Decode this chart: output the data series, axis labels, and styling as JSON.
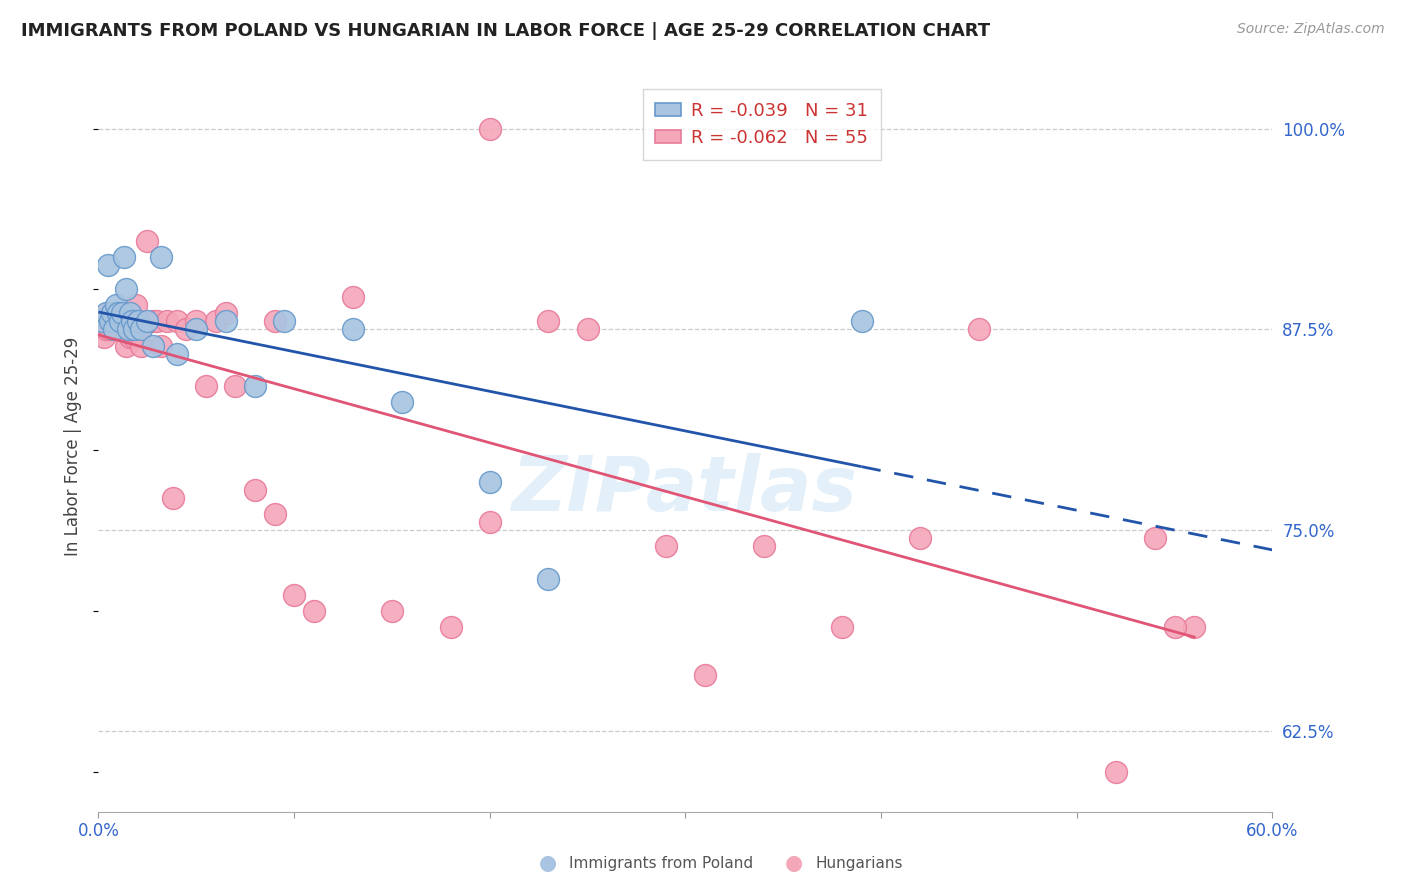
{
  "title": "IMMIGRANTS FROM POLAND VS HUNGARIAN IN LABOR FORCE | AGE 25-29 CORRELATION CHART",
  "source": "Source: ZipAtlas.com",
  "ylabel": "In Labor Force | Age 25-29",
  "xlim": [
    0.0,
    0.6
  ],
  "ylim": [
    0.575,
    1.03
  ],
  "yticks_right": [
    0.625,
    0.75,
    0.875,
    1.0
  ],
  "yticklabels_right": [
    "62.5%",
    "75.0%",
    "87.5%",
    "100.0%"
  ],
  "grid_yticks": [
    0.625,
    0.75,
    0.875,
    1.0
  ],
  "legend_R_poland": "-0.039",
  "legend_N_poland": "31",
  "legend_R_hungarian": "-0.062",
  "legend_N_hungarian": "55",
  "poland_color": "#a8c4e0",
  "hungarian_color": "#f4a7b9",
  "poland_edge_color": "#6699cc",
  "hungarian_edge_color": "#e87a9a",
  "trendline_poland_color": "#2255aa",
  "trendline_hungarian_color": "#e05575",
  "watermark": "ZIPatlas",
  "poland_x": [
    0.002,
    0.004,
    0.005,
    0.006,
    0.007,
    0.008,
    0.009,
    0.01,
    0.011,
    0.012,
    0.013,
    0.014,
    0.015,
    0.016,
    0.017,
    0.018,
    0.02,
    0.022,
    0.025,
    0.028,
    0.032,
    0.04,
    0.05,
    0.065,
    0.08,
    0.095,
    0.13,
    0.155,
    0.2,
    0.23,
    0.39
  ],
  "poland_y": [
    0.88,
    0.885,
    0.915,
    0.88,
    0.885,
    0.875,
    0.89,
    0.885,
    0.88,
    0.885,
    0.92,
    0.9,
    0.875,
    0.885,
    0.88,
    0.875,
    0.88,
    0.875,
    0.88,
    0.865,
    0.92,
    0.86,
    0.875,
    0.88,
    0.84,
    0.88,
    0.875,
    0.83,
    0.78,
    0.72,
    0.88
  ],
  "hungarian_x": [
    0.002,
    0.003,
    0.004,
    0.005,
    0.006,
    0.007,
    0.008,
    0.009,
    0.01,
    0.011,
    0.012,
    0.013,
    0.014,
    0.015,
    0.016,
    0.017,
    0.018,
    0.019,
    0.02,
    0.022,
    0.025,
    0.028,
    0.03,
    0.032,
    0.035,
    0.038,
    0.04,
    0.045,
    0.05,
    0.055,
    0.06,
    0.065,
    0.07,
    0.08,
    0.09,
    0.1,
    0.11,
    0.13,
    0.15,
    0.18,
    0.2,
    0.23,
    0.25,
    0.29,
    0.31,
    0.34,
    0.38,
    0.42,
    0.45,
    0.52,
    0.54,
    0.56,
    0.09,
    0.2,
    0.55
  ],
  "hungarian_y": [
    0.88,
    0.87,
    0.875,
    0.885,
    0.875,
    0.88,
    0.875,
    0.88,
    0.875,
    0.885,
    0.88,
    0.875,
    0.865,
    0.88,
    0.87,
    0.875,
    0.87,
    0.89,
    0.87,
    0.865,
    0.93,
    0.88,
    0.88,
    0.865,
    0.88,
    0.77,
    0.88,
    0.875,
    0.88,
    0.84,
    0.88,
    0.885,
    0.84,
    0.775,
    0.88,
    0.71,
    0.7,
    0.895,
    0.7,
    0.69,
    1.0,
    0.88,
    0.875,
    0.74,
    0.66,
    0.74,
    0.69,
    0.745,
    0.875,
    0.6,
    0.745,
    0.69,
    0.76,
    0.755,
    0.69
  ],
  "trendline_poland_slope": -0.039,
  "trendline_polish_intercept": 0.887,
  "trendline_hungarian_slope": -0.062,
  "trendline_hungarian_intercept": 0.885
}
